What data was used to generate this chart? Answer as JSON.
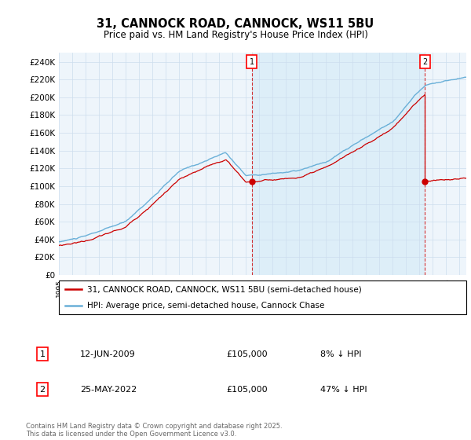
{
  "title_line1": "31, CANNOCK ROAD, CANNOCK, WS11 5BU",
  "title_line2": "Price paid vs. HM Land Registry's House Price Index (HPI)",
  "ylabel_ticks": [
    "£0",
    "£20K",
    "£40K",
    "£60K",
    "£80K",
    "£100K",
    "£120K",
    "£140K",
    "£160K",
    "£180K",
    "£200K",
    "£220K",
    "£240K"
  ],
  "ytick_values": [
    0,
    20000,
    40000,
    60000,
    80000,
    100000,
    120000,
    140000,
    160000,
    180000,
    200000,
    220000,
    240000
  ],
  "ylim": [
    0,
    250000
  ],
  "legend_line1": "31, CANNOCK ROAD, CANNOCK, WS11 5BU (semi-detached house)",
  "legend_line2": "HPI: Average price, semi-detached house, Cannock Chase",
  "sale1_date": "12-JUN-2009",
  "sale1_price": "£105,000",
  "sale1_hpi": "8% ↓ HPI",
  "sale2_date": "25-MAY-2022",
  "sale2_price": "£105,000",
  "sale2_hpi": "47% ↓ HPI",
  "footer": "Contains HM Land Registry data © Crown copyright and database right 2025.\nThis data is licensed under the Open Government Licence v3.0.",
  "hpi_color": "#6ab0d8",
  "sale_color": "#cc0000",
  "shade_color": "#ddeef8",
  "marker1_year": 2009.45,
  "marker2_year": 2022.39,
  "sale1_value": 105000,
  "sale2_value": 105000,
  "grid_color": "#ccddee",
  "bg_color": "#eef5fb"
}
